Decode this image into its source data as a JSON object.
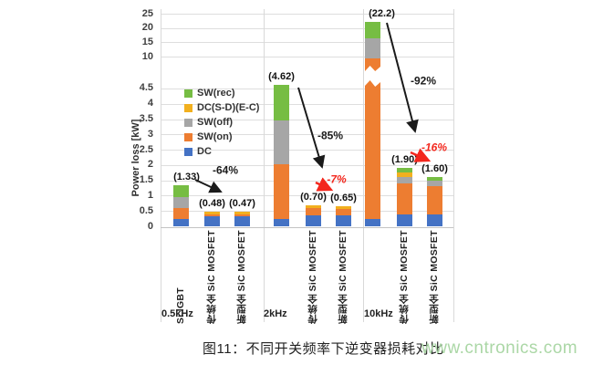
{
  "figure": {
    "caption": "图11：不同开关频率下逆变器损耗对比",
    "watermark": "www.cntronics.com",
    "watermark_color": "#abd7a6"
  },
  "chart_data": {
    "type": "bar",
    "subtype": "stacked-bars-with-broken-y-axis",
    "title": "",
    "xlabel": "",
    "ylabel": "Power loss [kW]",
    "unit": "kW",
    "grid": true,
    "legend_position": "inside-upper-left",
    "axis_break": {
      "lower_range": [
        0,
        4.7
      ],
      "upper_range": [
        10,
        25
      ]
    },
    "lower_ticks": [
      "4.5",
      "4",
      "3.5",
      "3",
      "2.5",
      "2",
      "1.5",
      "1",
      "0.5",
      "0"
    ],
    "upper_ticks": [
      "25",
      "20",
      "15",
      "10"
    ],
    "stack_order": [
      "DC",
      "SW_on",
      "SW_off",
      "DC_SD",
      "SW_rec"
    ],
    "legend": [
      {
        "key": "SW_rec",
        "label": "SW(rec)",
        "color": "#76BD43"
      },
      {
        "key": "DC_SD",
        "label": "DC(S-D)(E-C)",
        "color": "#F2B01E"
      },
      {
        "key": "SW_off",
        "label": "SW(off)",
        "color": "#A6A6A6"
      },
      {
        "key": "SW_on",
        "label": "SW(on)",
        "color": "#ED7D31"
      },
      {
        "key": "DC",
        "label": "DC",
        "color": "#4472C4"
      }
    ],
    "groups": [
      {
        "label": "0.5kHz"
      },
      {
        "label": "2kHz"
      },
      {
        "label": "10kHz"
      }
    ],
    "bars": [
      {
        "group": "0.5kHz",
        "device": "Si IGBT",
        "show_device_label": true,
        "broken": false,
        "total": 1.33,
        "value_label": "(1.33)",
        "segments": {
          "DC": 0.25,
          "SW_on": 0.36,
          "SW_off": 0.34,
          "DC_SD": 0,
          "SW_rec": 0.38
        }
      },
      {
        "group": "0.5kHz",
        "device": "传统全 SiC MOSFET",
        "show_device_label": true,
        "broken": false,
        "total": 0.48,
        "value_label": "(0.48)",
        "segments": {
          "DC": 0.34,
          "SW_on": 0.05,
          "SW_off": 0,
          "DC_SD": 0.09,
          "SW_rec": 0
        }
      },
      {
        "group": "0.5kHz",
        "device": "新型全 SiC MOSFET",
        "show_device_label": true,
        "broken": false,
        "total": 0.47,
        "value_label": "(0.47)",
        "segments": {
          "DC": 0.34,
          "SW_on": 0.05,
          "SW_off": 0,
          "DC_SD": 0.08,
          "SW_rec": 0
        }
      },
      {
        "group": "2kHz",
        "device": "Si IGBT",
        "show_device_label": false,
        "broken": false,
        "total": 4.62,
        "value_label": "(4.62)",
        "segments": {
          "DC": 0.24,
          "SW_on": 1.8,
          "SW_off": 1.43,
          "DC_SD": 0,
          "SW_rec": 1.15
        }
      },
      {
        "group": "2kHz",
        "device": "传统全 SiC MOSFET",
        "show_device_label": true,
        "broken": false,
        "total": 0.7,
        "value_label": "(0.70)",
        "segments": {
          "DC": 0.36,
          "SW_on": 0.24,
          "SW_off": 0,
          "DC_SD": 0.1,
          "SW_rec": 0
        }
      },
      {
        "group": "2kHz",
        "device": "新型全 SiC MOSFET",
        "show_device_label": true,
        "broken": false,
        "total": 0.65,
        "value_label": "(0.65)",
        "segments": {
          "DC": 0.36,
          "SW_on": 0.2,
          "SW_off": 0,
          "DC_SD": 0.09,
          "SW_rec": 0
        }
      },
      {
        "group": "10kHz",
        "device": "Si IGBT",
        "show_device_label": false,
        "broken": true,
        "total": 22.2,
        "value_label": "(22.2)",
        "segments": {
          "DC": 0.25,
          "SW_on": 8.95,
          "SW_off": 7.15,
          "DC_SD": 0,
          "SW_rec": 5.85
        }
      },
      {
        "group": "10kHz",
        "device": "传统全 SiC MOSFET",
        "show_device_label": true,
        "broken": false,
        "total": 1.9,
        "value_label": "(1.90)",
        "segments": {
          "DC": 0.4,
          "SW_on": 1.0,
          "SW_off": 0.2,
          "DC_SD": 0.15,
          "SW_rec": 0.15
        }
      },
      {
        "group": "10kHz",
        "device": "新型全 SiC MOSFET",
        "show_device_label": true,
        "broken": false,
        "total": 1.6,
        "value_label": "(1.60)",
        "segments": {
          "DC": 0.4,
          "SW_on": 0.9,
          "SW_off": 0.2,
          "DC_SD": 0,
          "SW_rec": 0.1
        }
      }
    ],
    "annotations": [
      {
        "text": "-64%",
        "color": "#1a1a1a",
        "italic": false
      },
      {
        "text": "-85%",
        "color": "#1a1a1a",
        "italic": false
      },
      {
        "text": "-7%",
        "color": "#f3271d",
        "italic": true
      },
      {
        "text": "-92%",
        "color": "#1a1a1a",
        "italic": false
      },
      {
        "text": "-16%",
        "color": "#f3271d",
        "italic": true
      }
    ]
  }
}
